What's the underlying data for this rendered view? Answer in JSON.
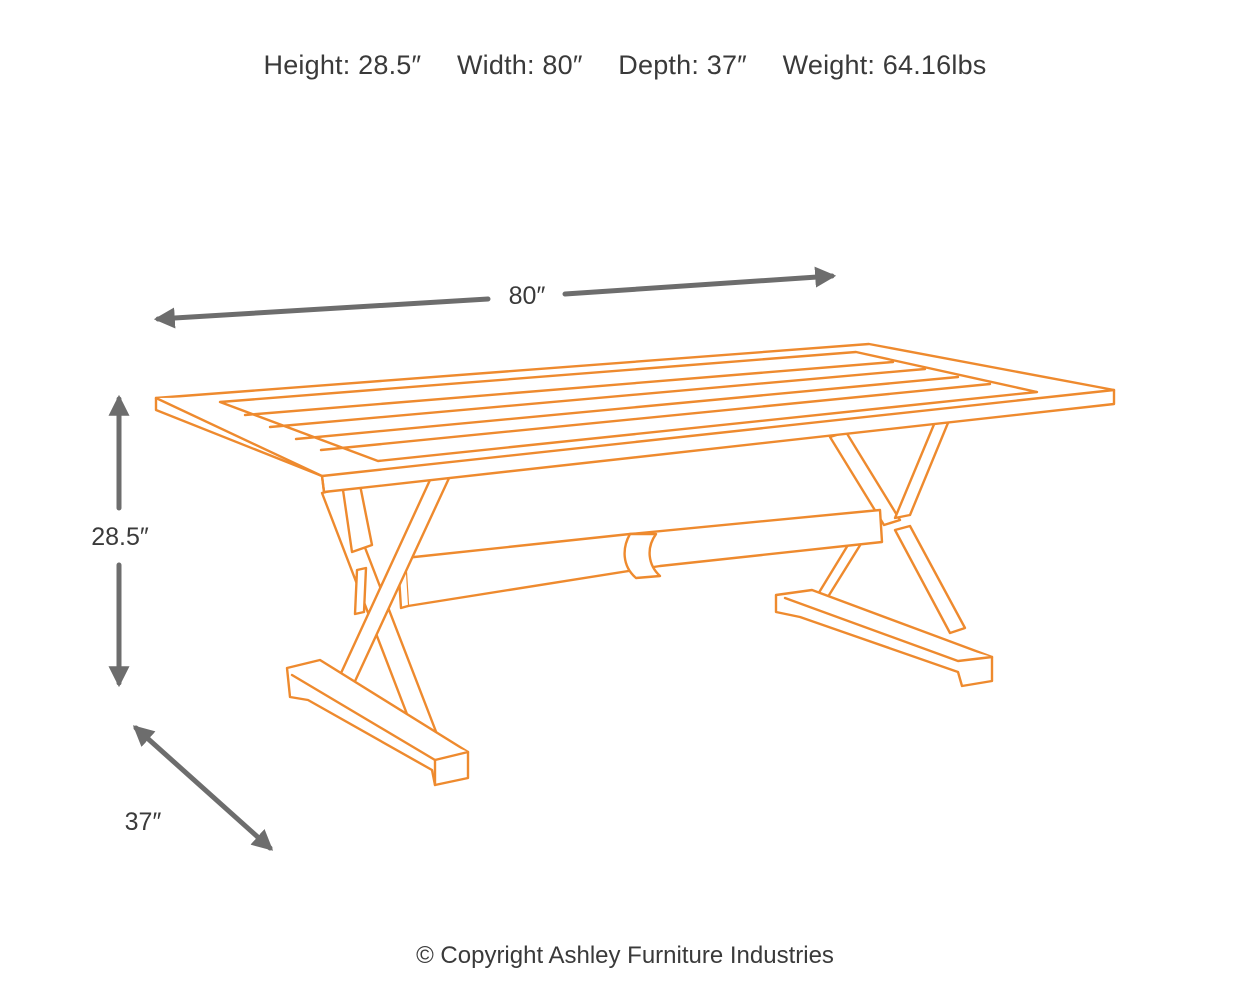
{
  "specs": {
    "height": "Height: 28.5″",
    "width": "Width: 80″",
    "depth": "Depth: 37″",
    "weight": "Weight: 64.16lbs"
  },
  "dimensions": {
    "width_label": "80″",
    "height_label": "28.5″",
    "depth_label": "37″"
  },
  "copyright": "© Copyright Ashley Furniture Industries",
  "colors": {
    "outline": "#ee8a2e",
    "arrows": "#6d6d6d",
    "text": "#3a3a3a"
  }
}
